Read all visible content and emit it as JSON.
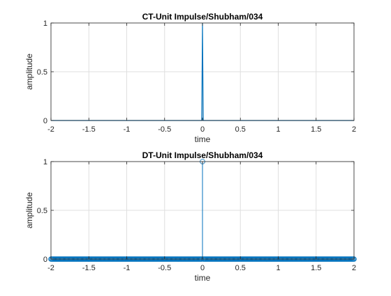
{
  "chart_data": [
    {
      "type": "line",
      "title": "CT-Unit Impulse/Shubham/034",
      "xlabel": "time",
      "ylabel": "amplitude",
      "xlim": [
        -2,
        2
      ],
      "ylim": [
        0,
        1
      ],
      "xticks": [
        "-2",
        "-1.5",
        "-1",
        "-0.5",
        "0",
        "0.5",
        "1",
        "1.5",
        "2"
      ],
      "yticks": [
        "0",
        "0.5",
        "1"
      ],
      "grid": true,
      "series": [
        {
          "x": [
            -2,
            -0.01,
            0,
            0.01,
            2
          ],
          "y": [
            0,
            0,
            1,
            0,
            0
          ]
        }
      ]
    },
    {
      "type": "scatter",
      "style": "stem",
      "title": "DT-Unit Impulse/Shubham/034",
      "xlabel": "time",
      "ylabel": "amplitude",
      "xlim": [
        -2,
        2
      ],
      "ylim": [
        0,
        1
      ],
      "xticks": [
        "-2",
        "-1.5",
        "-1",
        "-0.5",
        "0",
        "0.5",
        "1",
        "1.5",
        "2"
      ],
      "yticks": [
        "0",
        "0.5",
        "1"
      ],
      "grid": true,
      "series": [
        {
          "x_start": -2,
          "x_end": 2,
          "x_step": 0.01,
          "impulse_at": 0,
          "impulse_value": 1,
          "other_value": 0
        }
      ]
    }
  ],
  "colors": {
    "series": "#0072BD",
    "axes": "#262626",
    "grid": "#DFDFDF",
    "background": "#FFFFFF"
  }
}
